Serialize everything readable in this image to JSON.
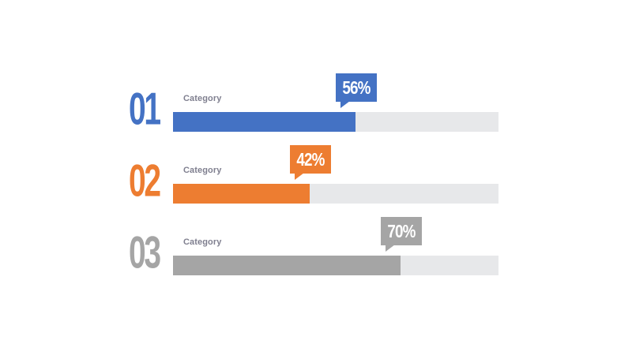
{
  "chart_data": {
    "type": "bar",
    "orientation": "horizontal",
    "xlim": [
      0,
      100
    ],
    "items": [
      {
        "number": "01",
        "label": "Category",
        "value": 56,
        "value_label": "56%",
        "color": "#4472c4"
      },
      {
        "number": "02",
        "label": "Category",
        "value": 42,
        "value_label": "42%",
        "color": "#ed7d31"
      },
      {
        "number": "03",
        "label": "Category",
        "value": 70,
        "value_label": "70%",
        "color": "#a5a5a5"
      }
    ],
    "track_color": "#e7e8ea"
  }
}
